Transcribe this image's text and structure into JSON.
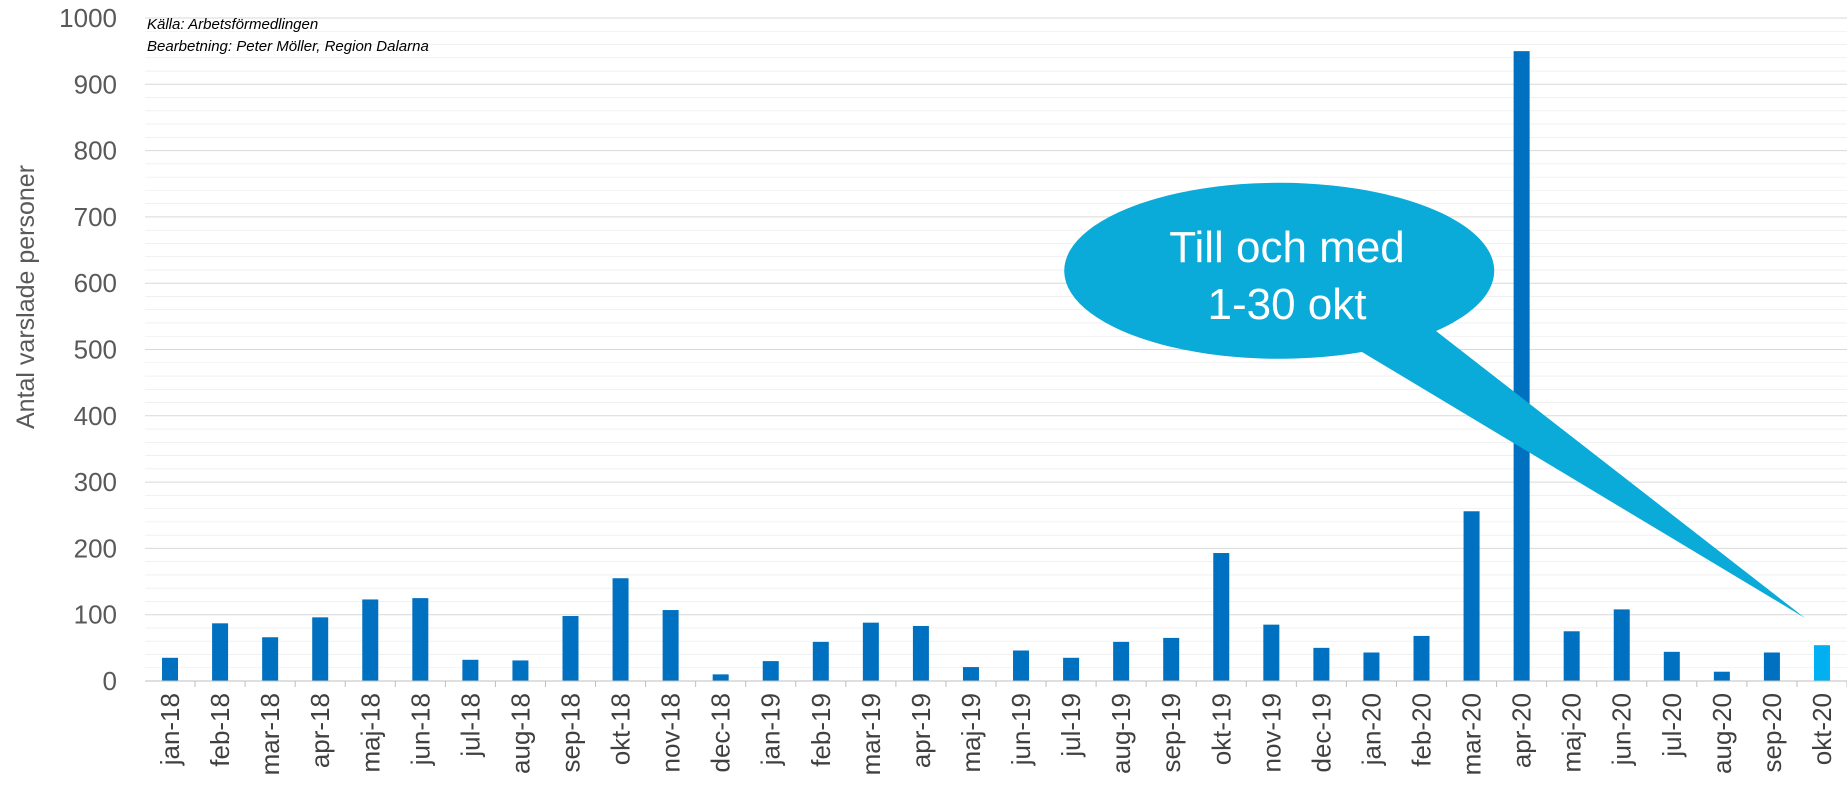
{
  "chart_data": {
    "type": "bar",
    "source_lines": [
      "Källa: Arbetsförmedlingen",
      "Bearbetning: Peter Möller, Region Dalarna"
    ],
    "ylabel": "Antal varslade personer",
    "xlabel": "",
    "ylim": [
      0,
      1000
    ],
    "yticks": [
      0,
      100,
      200,
      300,
      400,
      500,
      600,
      700,
      800,
      900,
      1000
    ],
    "grid": true,
    "legend": "none",
    "categories": [
      "jan-18",
      "feb-18",
      "mar-18",
      "apr-18",
      "maj-18",
      "jun-18",
      "jul-18",
      "aug-18",
      "sep-18",
      "okt-18",
      "nov-18",
      "dec-18",
      "jan-19",
      "feb-19",
      "mar-19",
      "apr-19",
      "maj-19",
      "jun-19",
      "jul-19",
      "aug-19",
      "sep-19",
      "okt-19",
      "nov-19",
      "dec-19",
      "jan-20",
      "feb-20",
      "mar-20",
      "apr-20",
      "maj-20",
      "jun-20",
      "jul-20",
      "aug-20",
      "sep-20",
      "okt-20"
    ],
    "values": [
      35,
      87,
      66,
      96,
      123,
      125,
      32,
      31,
      98,
      155,
      107,
      10,
      30,
      59,
      88,
      83,
      21,
      46,
      35,
      59,
      65,
      193,
      85,
      50,
      43,
      68,
      256,
      950,
      75,
      108,
      44,
      14,
      43,
      54
    ],
    "highlight_index": 33,
    "colors": {
      "bar": "#0070C0",
      "highlight": "#00B0F0",
      "callout": "#0AAAD9",
      "grid": "#D9D9D9"
    },
    "callout": {
      "lines": [
        "Till och med",
        "1-30 okt"
      ]
    }
  }
}
